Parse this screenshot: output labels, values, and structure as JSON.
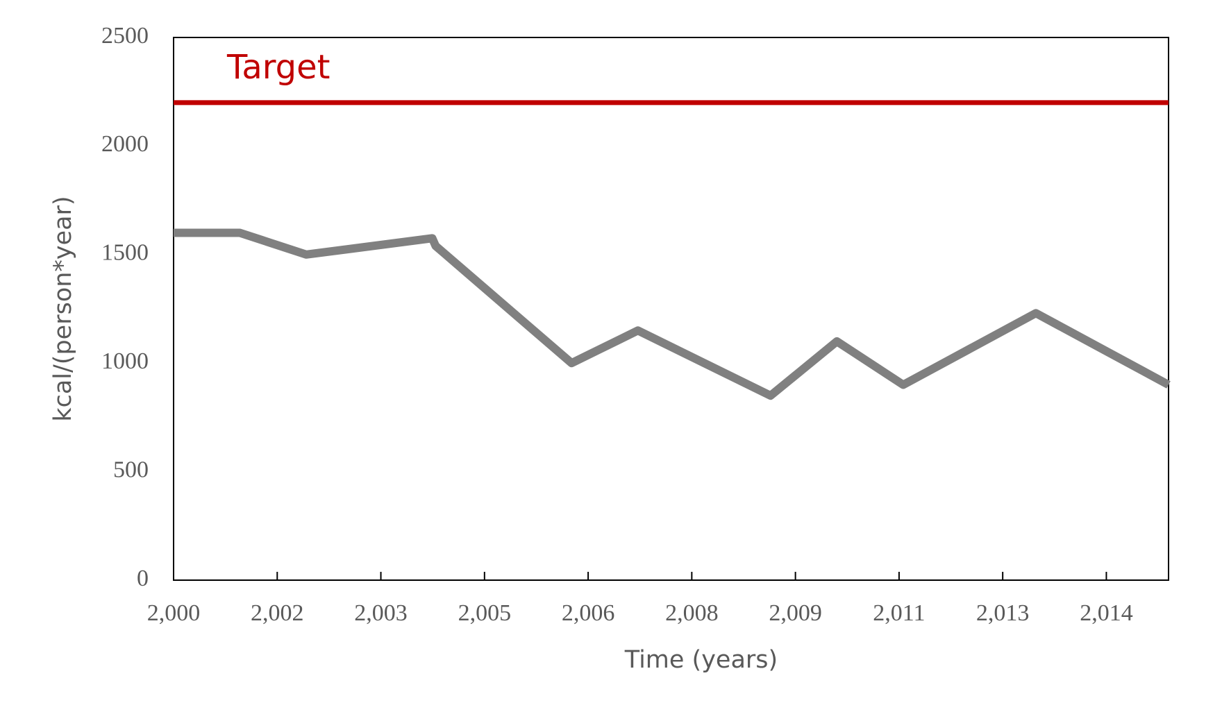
{
  "chart_data": {
    "type": "line",
    "x_label": "Time (years)",
    "y_label": "kcal/(person*year)",
    "x": [
      2000,
      2001,
      2002,
      2003.9,
      2003.95,
      2006,
      2007,
      2009,
      2010,
      2011,
      2013,
      2015
    ],
    "values": [
      1600,
      1600,
      1500,
      1575,
      1540,
      1000,
      1150,
      850,
      1100,
      900,
      1230,
      900
    ],
    "color": "#808080",
    "target": {
      "label": "Target",
      "value": 2200,
      "color": "#c00000"
    },
    "xlim": [
      2000,
      2015
    ],
    "xticks": [
      {
        "value": 2000,
        "label": "2,000"
      },
      {
        "value": 2001.5625,
        "label": "2,002"
      },
      {
        "value": 2003.125,
        "label": "2,003"
      },
      {
        "value": 2004.6875,
        "label": "2,005"
      },
      {
        "value": 2006.25,
        "label": "2,006"
      },
      {
        "value": 2007.8125,
        "label": "2,008"
      },
      {
        "value": 2009.375,
        "label": "2,009"
      },
      {
        "value": 2010.9375,
        "label": "2,011"
      },
      {
        "value": 2012.5,
        "label": "2,013"
      },
      {
        "value": 2014.0625,
        "label": "2,014"
      }
    ],
    "ylim": [
      0,
      2500
    ],
    "yticks": [
      0,
      500,
      1000,
      1500,
      2000,
      2500
    ]
  }
}
